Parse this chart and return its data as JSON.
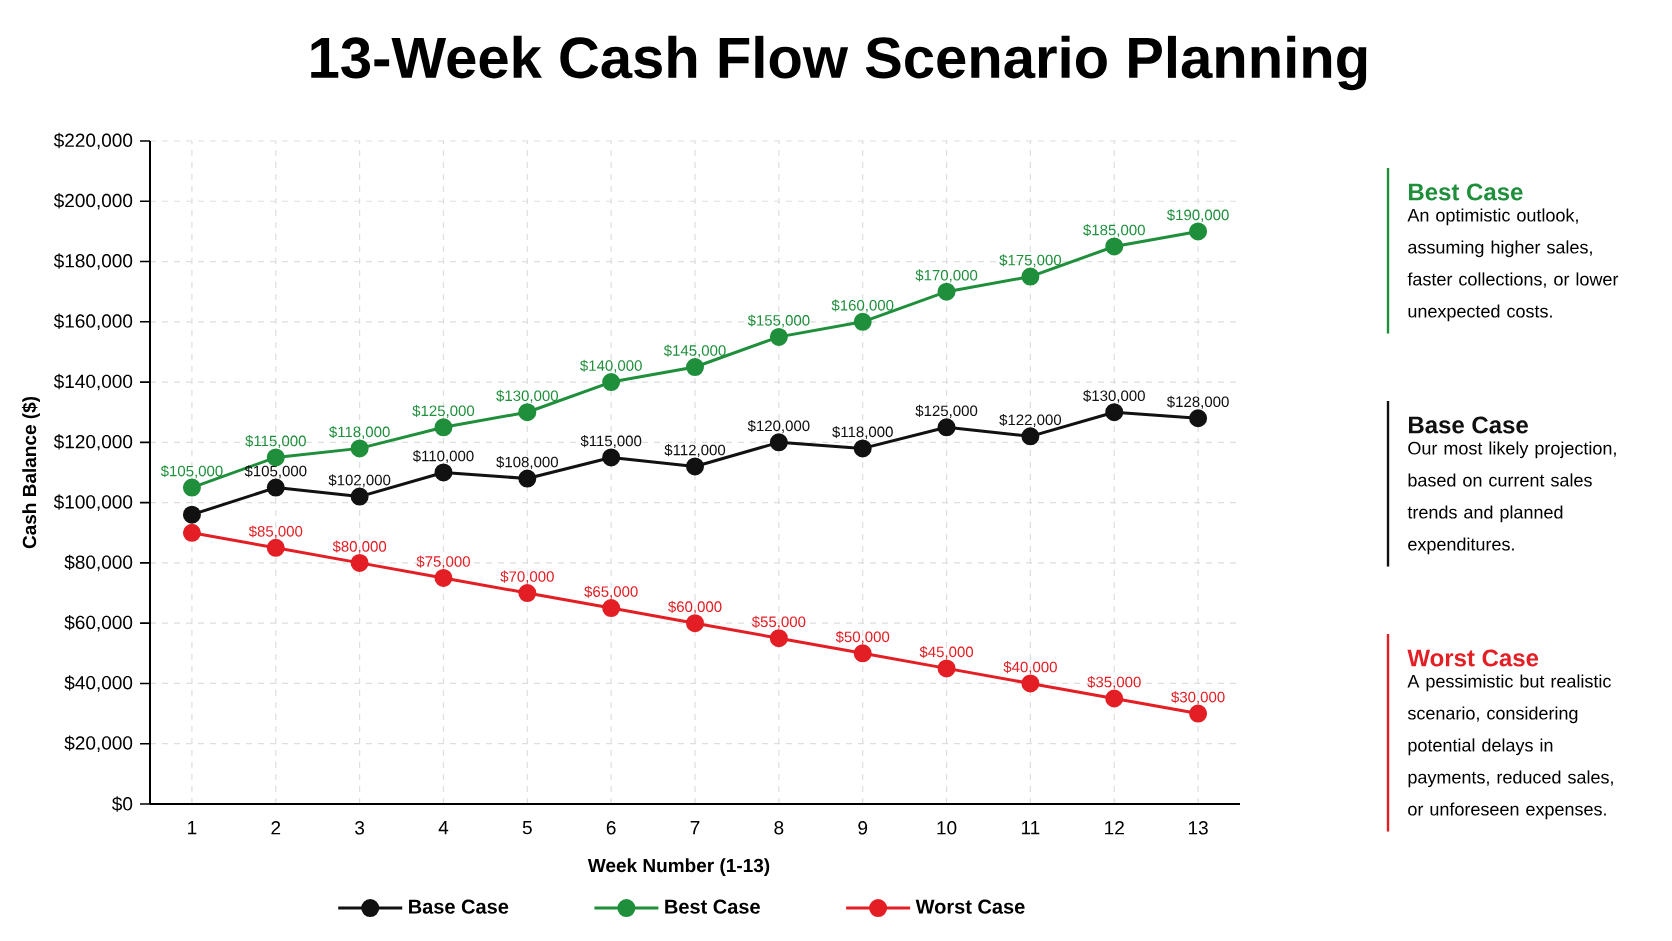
{
  "chart_data": [
    {
      "type": "line",
      "title": "13-Week Cash Flow Scenario Planning",
      "xlabel": "Week Number (1-13)",
      "ylabel": "Cash Balance ($)",
      "x": [
        1,
        2,
        3,
        4,
        5,
        6,
        7,
        8,
        9,
        10,
        11,
        12,
        13
      ],
      "xlim": [
        0.5,
        13.5
      ],
      "xticks": [
        1,
        2,
        3,
        4,
        5,
        6,
        7,
        8,
        9,
        10,
        11,
        12,
        13
      ],
      "ylim": [
        0,
        220000
      ],
      "yticks": [
        {
          "value": 0,
          "label": "$0"
        },
        {
          "value": 20000,
          "label": "$20,000"
        },
        {
          "value": 40000,
          "label": "$40,000"
        },
        {
          "value": 60000,
          "label": "$60,000"
        },
        {
          "value": 80000,
          "label": "$80,000"
        },
        {
          "value": 100000,
          "label": "$100,000"
        },
        {
          "value": 120000,
          "label": "$120,000"
        },
        {
          "value": 140000,
          "label": "$140,000"
        },
        {
          "value": 160000,
          "label": "$160,000"
        },
        {
          "value": 180000,
          "label": "$180,000"
        },
        {
          "value": 200000,
          "label": "$200,000"
        },
        {
          "value": 220000,
          "label": "$220,000"
        }
      ],
      "grid": true,
      "legend": "bottom",
      "marker": "circle",
      "line_style": "solid",
      "series": [
        {
          "name": "Base Case",
          "color": "#111111",
          "values": [
            96000,
            105000,
            102000,
            110000,
            108000,
            115000,
            112000,
            120000,
            118000,
            125000,
            122000,
            130000,
            128000
          ],
          "value_labels": [
            null,
            "$105,000",
            "$102,000",
            "$110,000",
            "$108,000",
            "$115,000",
            "$112,000",
            "$120,000",
            "$118,000",
            "$125,000",
            "$122,000",
            "$130,000",
            "$128,000"
          ]
        },
        {
          "name": "Best Case",
          "color": "#1f8f3c",
          "values": [
            105000,
            115000,
            118000,
            125000,
            130000,
            140000,
            145000,
            155000,
            160000,
            170000,
            175000,
            185000,
            190000
          ],
          "value_labels": [
            "$105,000",
            "$115,000",
            "$118,000",
            "$125,000",
            "$130,000",
            "$140,000",
            "$145,000",
            "$155,000",
            "$160,000",
            "$170,000",
            "$175,000",
            "$185,000",
            "$190,000"
          ]
        },
        {
          "name": "Worst Case",
          "color": "#e31e24",
          "values": [
            90000,
            85000,
            80000,
            75000,
            70000,
            65000,
            60000,
            55000,
            50000,
            45000,
            40000,
            35000,
            30000
          ],
          "value_labels": [
            null,
            "$85,000",
            "$80,000",
            "$75,000",
            "$70,000",
            "$65,000",
            "$60,000",
            "$55,000",
            "$50,000",
            "$45,000",
            "$40,000",
            "$35,000",
            "$30,000"
          ]
        }
      ]
    },
    {
      "type": "other",
      "title": "Best Case",
      "color": "#1f8f3c",
      "annotations": [
        "An optimistic outlook, assuming higher sales, faster collections, or lower unexpected costs."
      ]
    },
    {
      "type": "other",
      "title": "Base Case",
      "color": "#111111",
      "annotations": [
        "Our most likely projection, based on current sales trends and planned expenditures."
      ]
    },
    {
      "type": "other",
      "title": "Worst Case",
      "color": "#e31e24",
      "annotations": [
        "A pessimistic but realistic scenario, considering potential delays in payments, reduced sales, or unforeseen expenses."
      ]
    }
  ]
}
